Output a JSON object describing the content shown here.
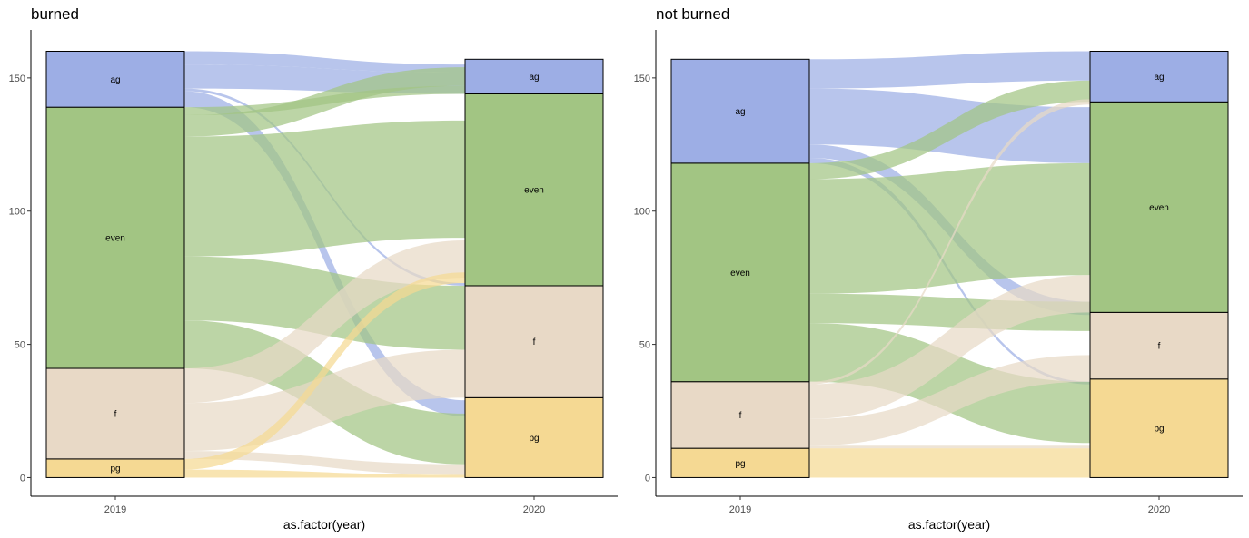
{
  "colors": {
    "ag": "#9DAEE5",
    "even": "#A2C583",
    "f": "#E8D9C6",
    "pg": "#F5D993"
  },
  "chart_data": [
    {
      "type": "alluvial",
      "title": "burned",
      "xlabel": "as.factor(year)",
      "ylabel": "",
      "categories": [
        "2019",
        "2020"
      ],
      "y_ticks": [
        "0",
        "50",
        "100",
        "150"
      ],
      "ylim": [
        -7,
        168
      ],
      "grid": false,
      "strata": [
        {
          "year": "2019",
          "stack": [
            {
              "label": "pg",
              "key": "pg",
              "value": 7
            },
            {
              "label": "f",
              "key": "f",
              "value": 34
            },
            {
              "label": "even",
              "key": "even",
              "value": 98
            },
            {
              "label": "ag",
              "key": "ag",
              "value": 21
            }
          ]
        },
        {
          "year": "2020",
          "stack": [
            {
              "label": "pg",
              "key": "pg",
              "value": 30
            },
            {
              "label": "f",
              "key": "f",
              "value": 42
            },
            {
              "label": "even",
              "key": "even",
              "value": 72
            },
            {
              "label": "ag",
              "key": "ag",
              "value": 13
            }
          ]
        }
      ],
      "flows": [
        {
          "color": "ag",
          "from": [
            155,
            160
          ],
          "to": [
            152,
            155
          ]
        },
        {
          "color": "ag",
          "from": [
            146,
            155
          ],
          "to": [
            144,
            152
          ]
        },
        {
          "color": "ag",
          "from": [
            145,
            146
          ],
          "to": [
            72,
            73
          ]
        },
        {
          "color": "ag",
          "from": [
            139,
            145
          ],
          "to": [
            23,
            29
          ]
        },
        {
          "color": "even",
          "from": [
            136,
            139
          ],
          "to": [
            144,
            147
          ]
        },
        {
          "color": "even",
          "from": [
            128,
            136
          ],
          "to": [
            147,
            154
          ]
        },
        {
          "color": "even",
          "from": [
            83,
            128
          ],
          "to": [
            90,
            134
          ]
        },
        {
          "color": "even",
          "from": [
            59,
            83
          ],
          "to": [
            48,
            72
          ]
        },
        {
          "color": "even",
          "from": [
            41,
            59
          ],
          "to": [
            5,
            24
          ]
        },
        {
          "color": "f",
          "from": [
            28,
            41
          ],
          "to": [
            75,
            89
          ]
        },
        {
          "color": "f",
          "from": [
            10,
            28
          ],
          "to": [
            30,
            48
          ]
        },
        {
          "color": "f",
          "from": [
            7,
            10
          ],
          "to": [
            1,
            5
          ]
        },
        {
          "color": "pg",
          "from": [
            3,
            7
          ],
          "to": [
            73,
            77
          ]
        },
        {
          "color": "pg",
          "from": [
            0,
            3
          ],
          "to": [
            0,
            1
          ]
        }
      ]
    },
    {
      "type": "alluvial",
      "title": "not burned",
      "xlabel": "as.factor(year)",
      "ylabel": "",
      "categories": [
        "2019",
        "2020"
      ],
      "y_ticks": [
        "0",
        "50",
        "100",
        "150"
      ],
      "ylim": [
        -7,
        168
      ],
      "grid": false,
      "strata": [
        {
          "year": "2019",
          "stack": [
            {
              "label": "pg",
              "key": "pg",
              "value": 11
            },
            {
              "label": "f",
              "key": "f",
              "value": 25
            },
            {
              "label": "even",
              "key": "even",
              "value": 82
            },
            {
              "label": "ag",
              "key": "ag",
              "value": 39
            }
          ]
        },
        {
          "year": "2020",
          "stack": [
            {
              "label": "pg",
              "key": "pg",
              "value": 37
            },
            {
              "label": "f",
              "key": "f",
              "value": 25
            },
            {
              "label": "even",
              "key": "even",
              "value": 79
            },
            {
              "label": "ag",
              "key": "ag",
              "value": 19
            }
          ]
        }
      ],
      "flows": [
        {
          "color": "ag",
          "from": [
            146,
            157
          ],
          "to": [
            149,
            160
          ]
        },
        {
          "color": "ag",
          "from": [
            125,
            146
          ],
          "to": [
            118,
            139
          ]
        },
        {
          "color": "ag",
          "from": [
            120,
            125
          ],
          "to": [
            61,
            66
          ]
        },
        {
          "color": "ag",
          "from": [
            118,
            120
          ],
          "to": [
            35,
            36
          ]
        },
        {
          "color": "even",
          "from": [
            112,
            118
          ],
          "to": [
            141,
            149
          ]
        },
        {
          "color": "even",
          "from": [
            69,
            112
          ],
          "to": [
            76,
            118
          ]
        },
        {
          "color": "even",
          "from": [
            58,
            69
          ],
          "to": [
            55,
            66
          ]
        },
        {
          "color": "even",
          "from": [
            36,
            58
          ],
          "to": [
            13,
            36
          ]
        },
        {
          "color": "f",
          "from": [
            35,
            36
          ],
          "to": [
            140,
            142
          ]
        },
        {
          "color": "f",
          "from": [
            22,
            35
          ],
          "to": [
            62,
            76
          ]
        },
        {
          "color": "f",
          "from": [
            12,
            22
          ],
          "to": [
            36,
            46
          ]
        },
        {
          "color": "pg",
          "from": [
            0,
            11
          ],
          "to": [
            0,
            11
          ]
        },
        {
          "color": "f",
          "from": [
            11,
            12
          ],
          "to": [
            11,
            12
          ]
        }
      ]
    }
  ]
}
